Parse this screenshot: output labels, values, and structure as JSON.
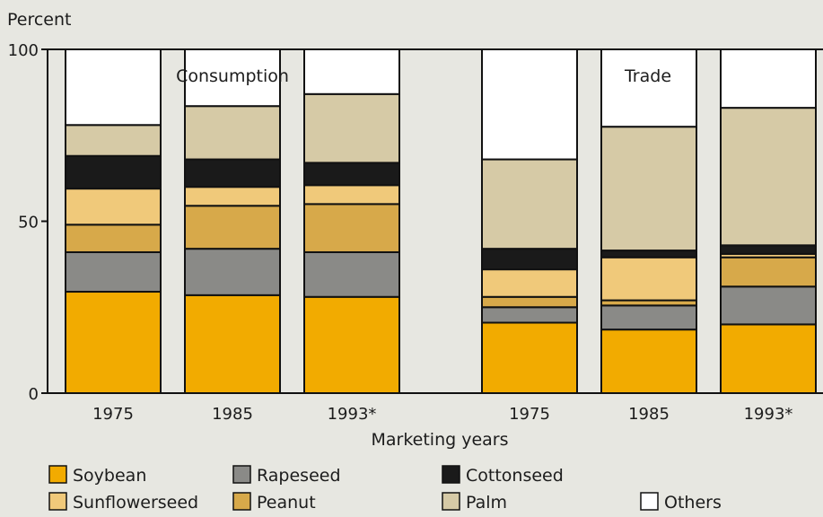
{
  "chart_data": {
    "type": "bar",
    "stacked": true,
    "ylabel": "Percent",
    "xlabel": "Marketing years",
    "ylim": [
      0,
      100
    ],
    "yticks": [
      "0",
      "50",
      "100"
    ],
    "panels": [
      {
        "label": "Consumption",
        "categories": [
          "1975",
          "1985",
          "1993*"
        ]
      },
      {
        "label": "Trade",
        "categories": [
          "1975",
          "1985",
          "1993*"
        ]
      }
    ],
    "series": [
      {
        "name": "Soybean",
        "color": "#f2ab00",
        "values": [
          29.5,
          28.5,
          28,
          20.5,
          18.5,
          20
        ]
      },
      {
        "name": "Rapeseed",
        "color": "#8a8a87",
        "values": [
          11.5,
          13.5,
          13,
          4.5,
          7,
          11
        ]
      },
      {
        "name": "Peanut",
        "color": "#d7a94a",
        "values": [
          8,
          12.5,
          14,
          3,
          1.5,
          8.5
        ]
      },
      {
        "name": "Sunflowerseed",
        "color": "#f0c97a",
        "values": [
          10.5,
          5.5,
          5.5,
          8,
          12.5,
          1
        ]
      },
      {
        "name": "Cottonseed",
        "color": "#1a1a1a",
        "values": [
          9.5,
          8,
          6.5,
          6,
          2,
          2.5
        ]
      },
      {
        "name": "Palm",
        "color": "#d6caa6",
        "values": [
          9,
          15.5,
          20,
          26,
          36,
          40
        ]
      },
      {
        "name": "Others",
        "color": "#ffffff",
        "values": [
          22,
          16.5,
          13,
          32,
          22.5,
          17
        ]
      }
    ],
    "legend": {
      "placement": "bottom",
      "rows": [
        [
          "Soybean",
          "Rapeseed",
          "Cottonseed"
        ],
        [
          "Sunflowerseed",
          "Peanut",
          "Palm",
          "Others"
        ]
      ]
    },
    "grid": false
  }
}
